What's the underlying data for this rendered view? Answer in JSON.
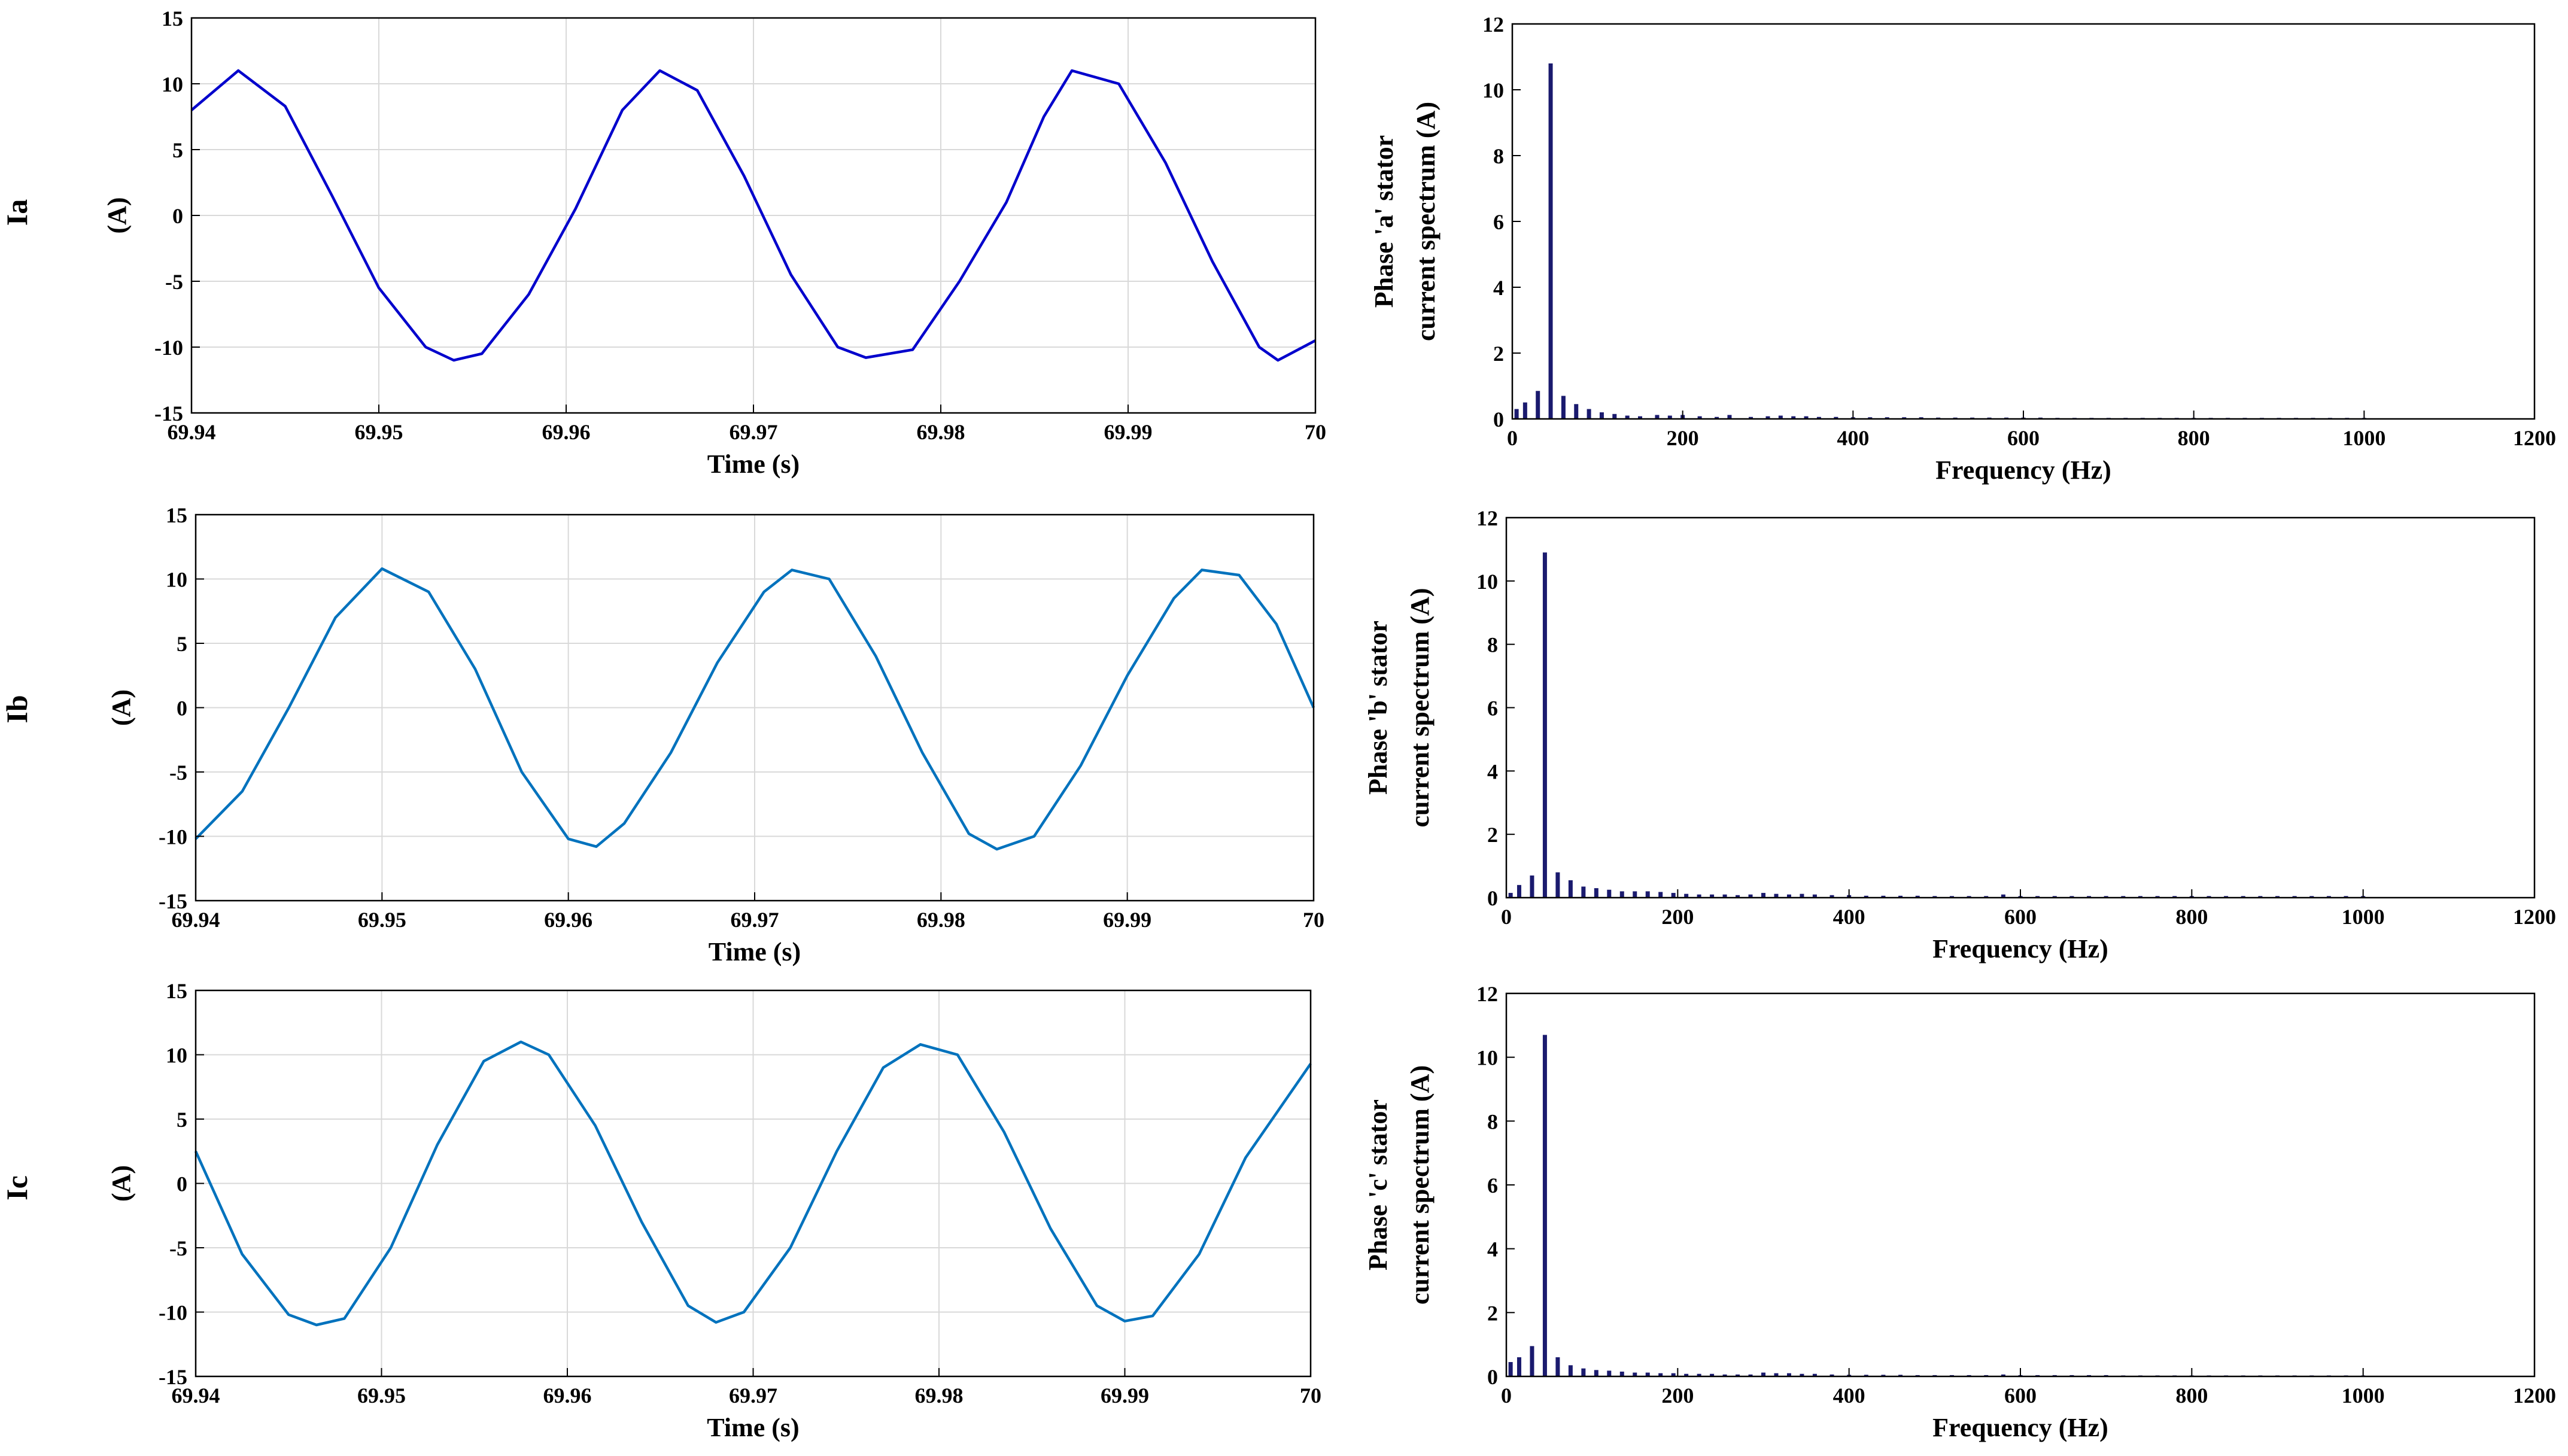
{
  "colors": {
    "time_series": [
      "#0000cc",
      "#0072bd",
      "#0072bd"
    ],
    "spectrum": "#1a1a6e",
    "grid": "#d9d9d9"
  },
  "row_labels": [
    "Ia",
    "Ib",
    "Ic"
  ],
  "chart_data": [
    {
      "type": "line",
      "row_label": "Ia",
      "ylabel": "(A)",
      "xlabel": "Time (s)",
      "xlim": [
        69.94,
        70
      ],
      "ylim": [
        -15,
        15
      ],
      "xticks": [
        69.94,
        69.95,
        69.96,
        69.97,
        69.98,
        69.99,
        70
      ],
      "xtick_labels": [
        "69.94",
        "69.95",
        "69.96",
        "69.97",
        "69.98",
        "69.99",
        "70"
      ],
      "yticks": [
        -15,
        -10,
        -5,
        0,
        5,
        10,
        15
      ],
      "ytick_labels": [
        "-15",
        "-10",
        "-5",
        "0",
        "5",
        "10",
        "15"
      ],
      "grid": true,
      "series": [
        {
          "x": [
            69.94,
            69.9425,
            69.945,
            69.9475,
            69.95,
            69.9525,
            69.954,
            69.9555,
            69.958,
            69.9605,
            69.963,
            69.965,
            69.967,
            69.9695,
            69.972,
            69.9745,
            69.976,
            69.9785,
            69.981,
            69.9835,
            69.9855,
            69.987,
            69.9895,
            69.992,
            69.9945,
            69.997,
            69.998,
            70.0
          ],
          "y": [
            8.0,
            11.0,
            8.3,
            1.5,
            -5.5,
            -10.0,
            -11.0,
            -10.5,
            -6.0,
            0.5,
            8.0,
            11.0,
            9.5,
            3.0,
            -4.5,
            -10.0,
            -10.8,
            -10.2,
            -5.0,
            1.0,
            7.5,
            11.0,
            10.0,
            4.0,
            -3.5,
            -10.0,
            -11.0,
            -9.5
          ]
        }
      ]
    },
    {
      "type": "bar",
      "ylabel": "Phase 'a' stator\ncurrent spectrum (A)",
      "xlabel": "Frequency (Hz)",
      "xlim": [
        0,
        1200
      ],
      "ylim": [
        0,
        12
      ],
      "xticks": [
        0,
        200,
        400,
        600,
        800,
        1000,
        1200
      ],
      "xtick_labels": [
        "0",
        "200",
        "400",
        "600",
        "800",
        "1000",
        "1200"
      ],
      "yticks": [
        0,
        2,
        4,
        6,
        8,
        10,
        12
      ],
      "ytick_labels": [
        "0",
        "2",
        "4",
        "6",
        "8",
        "10",
        "12"
      ],
      "x": [
        5,
        15,
        30,
        45,
        60,
        75,
        90,
        105,
        120,
        135,
        150,
        170,
        185,
        200,
        220,
        240,
        255,
        280,
        300,
        315,
        330,
        345,
        360,
        380,
        400,
        420,
        440,
        460,
        480,
        500,
        520,
        540,
        560,
        580,
        600,
        620,
        640,
        660,
        680,
        700,
        720,
        740,
        760,
        780,
        800,
        820,
        840,
        860,
        880,
        900,
        920,
        940,
        960,
        980,
        1000
      ],
      "values": [
        0.3,
        0.5,
        0.85,
        10.8,
        0.7,
        0.45,
        0.3,
        0.2,
        0.15,
        0.1,
        0.08,
        0.12,
        0.1,
        0.12,
        0.08,
        0.06,
        0.12,
        0.06,
        0.08,
        0.1,
        0.08,
        0.08,
        0.06,
        0.06,
        0.05,
        0.05,
        0.05,
        0.05,
        0.05,
        0.04,
        0.04,
        0.04,
        0.04,
        0.04,
        0.04,
        0.04,
        0.03,
        0.03,
        0.03,
        0.03,
        0.03,
        0.03,
        0.03,
        0.03,
        0.03,
        0.03,
        0.03,
        0.03,
        0.03,
        0.03,
        0.03,
        0.03,
        0.03,
        0.03,
        0.03
      ]
    },
    {
      "type": "line",
      "row_label": "Ib",
      "ylabel": "(A)",
      "xlabel": "Time (s)",
      "xlim": [
        69.94,
        70
      ],
      "ylim": [
        -15,
        15
      ],
      "xticks": [
        69.94,
        69.95,
        69.96,
        69.97,
        69.98,
        69.99,
        70
      ],
      "xtick_labels": [
        "69.94",
        "69.95",
        "69.96",
        "69.97",
        "69.98",
        "69.99",
        "70"
      ],
      "yticks": [
        -15,
        -10,
        -5,
        0,
        5,
        10,
        15
      ],
      "ytick_labels": [
        "-15",
        "-10",
        "-5",
        "0",
        "5",
        "10",
        "15"
      ],
      "grid": true,
      "series": [
        {
          "x": [
            69.94,
            69.9425,
            69.945,
            69.9475,
            69.95,
            69.9525,
            69.955,
            69.9575,
            69.96,
            69.9615,
            69.963,
            69.9655,
            69.968,
            69.9705,
            69.972,
            69.974,
            69.9765,
            69.979,
            69.9815,
            69.983,
            69.985,
            69.9875,
            69.99,
            69.9925,
            69.994,
            69.996,
            69.998,
            70.0
          ],
          "y": [
            -10.2,
            -6.5,
            0.0,
            7.0,
            10.8,
            9.0,
            3.0,
            -5.0,
            -10.2,
            -10.8,
            -9.0,
            -3.5,
            3.5,
            9.0,
            10.7,
            10.0,
            4.0,
            -3.5,
            -9.8,
            -11.0,
            -10.0,
            -4.5,
            2.5,
            8.5,
            10.7,
            10.3,
            6.5,
            0.0
          ]
        }
      ]
    },
    {
      "type": "bar",
      "ylabel": "Phase 'b' stator\ncurrent spectrum (A)",
      "xlabel": "Frequency (Hz)",
      "xlim": [
        0,
        1200
      ],
      "ylim": [
        0,
        12
      ],
      "xticks": [
        0,
        200,
        400,
        600,
        800,
        1000,
        1200
      ],
      "xtick_labels": [
        "0",
        "200",
        "400",
        "600",
        "800",
        "1000",
        "1200"
      ],
      "yticks": [
        0,
        2,
        4,
        6,
        8,
        10,
        12
      ],
      "ytick_labels": [
        "0",
        "2",
        "4",
        "6",
        "8",
        "10",
        "12"
      ],
      "x": [
        5,
        15,
        30,
        45,
        60,
        75,
        90,
        105,
        120,
        135,
        150,
        165,
        180,
        195,
        210,
        225,
        240,
        255,
        270,
        285,
        300,
        315,
        330,
        345,
        360,
        380,
        400,
        420,
        440,
        460,
        480,
        500,
        520,
        540,
        560,
        580,
        600,
        620,
        640,
        660,
        680,
        700,
        720,
        740,
        760,
        780,
        800,
        820,
        840,
        860,
        880,
        900,
        920,
        940,
        960,
        980,
        1000
      ],
      "values": [
        0.15,
        0.4,
        0.7,
        10.9,
        0.8,
        0.55,
        0.35,
        0.3,
        0.25,
        0.2,
        0.2,
        0.2,
        0.18,
        0.15,
        0.12,
        0.1,
        0.1,
        0.1,
        0.08,
        0.1,
        0.15,
        0.12,
        0.1,
        0.12,
        0.1,
        0.08,
        0.08,
        0.06,
        0.06,
        0.06,
        0.06,
        0.05,
        0.05,
        0.05,
        0.05,
        0.1,
        0.05,
        0.05,
        0.05,
        0.05,
        0.05,
        0.05,
        0.05,
        0.05,
        0.05,
        0.05,
        0.05,
        0.05,
        0.05,
        0.05,
        0.05,
        0.05,
        0.05,
        0.05,
        0.05,
        0.05,
        0.05
      ]
    },
    {
      "type": "line",
      "row_label": "Ic",
      "ylabel": "(A)",
      "xlabel": "Time (s)",
      "xlim": [
        69.94,
        70
      ],
      "ylim": [
        -15,
        15
      ],
      "xticks": [
        69.94,
        69.95,
        69.96,
        69.97,
        69.98,
        69.99,
        70
      ],
      "xtick_labels": [
        "69.94",
        "69.95",
        "69.96",
        "69.97",
        "69.98",
        "69.99",
        "70"
      ],
      "yticks": [
        -15,
        -10,
        -5,
        0,
        5,
        10,
        15
      ],
      "ytick_labels": [
        "-15",
        "-10",
        "-5",
        "0",
        "5",
        "10",
        "15"
      ],
      "grid": true,
      "series": [
        {
          "x": [
            69.94,
            69.9425,
            69.945,
            69.9465,
            69.948,
            69.9505,
            69.953,
            69.9555,
            69.9575,
            69.959,
            69.9615,
            69.964,
            69.9665,
            69.968,
            69.9695,
            69.972,
            69.9745,
            69.977,
            69.979,
            69.981,
            69.9835,
            69.986,
            69.9885,
            69.99,
            69.9915,
            69.994,
            69.9965,
            70.0
          ],
          "y": [
            2.5,
            -5.5,
            -10.2,
            -11.0,
            -10.5,
            -5.0,
            3.0,
            9.5,
            11.0,
            10.0,
            4.5,
            -3.0,
            -9.5,
            -10.8,
            -10.0,
            -5.0,
            2.5,
            9.0,
            10.8,
            10.0,
            4.0,
            -3.5,
            -9.5,
            -10.7,
            -10.3,
            -5.5,
            2.0,
            9.3
          ]
        }
      ]
    },
    {
      "type": "bar",
      "ylabel": "Phase 'c' stator\ncurrent spectrum (A)",
      "xlabel": "Frequency (Hz)",
      "xlim": [
        0,
        1200
      ],
      "ylim": [
        0,
        12
      ],
      "xticks": [
        0,
        200,
        400,
        600,
        800,
        1000,
        1200
      ],
      "xtick_labels": [
        "0",
        "200",
        "400",
        "600",
        "800",
        "1000",
        "1200"
      ],
      "yticks": [
        0,
        2,
        4,
        6,
        8,
        10,
        12
      ],
      "ytick_labels": [
        "0",
        "2",
        "4",
        "6",
        "8",
        "10",
        "12"
      ],
      "x": [
        5,
        15,
        30,
        45,
        60,
        75,
        90,
        105,
        120,
        135,
        150,
        165,
        180,
        195,
        210,
        225,
        240,
        255,
        270,
        285,
        300,
        315,
        330,
        345,
        360,
        380,
        400,
        420,
        440,
        460,
        480,
        500,
        520,
        540,
        560,
        580,
        600,
        620,
        640,
        660,
        680,
        700,
        720,
        740,
        760,
        780,
        800,
        820,
        840,
        860,
        880,
        900,
        920,
        940,
        960,
        980,
        1000
      ],
      "values": [
        0.45,
        0.6,
        0.95,
        10.7,
        0.6,
        0.35,
        0.25,
        0.2,
        0.18,
        0.15,
        0.12,
        0.12,
        0.1,
        0.1,
        0.08,
        0.08,
        0.08,
        0.06,
        0.06,
        0.06,
        0.12,
        0.1,
        0.1,
        0.08,
        0.08,
        0.06,
        0.05,
        0.05,
        0.05,
        0.05,
        0.04,
        0.04,
        0.04,
        0.04,
        0.04,
        0.06,
        0.04,
        0.04,
        0.04,
        0.04,
        0.04,
        0.04,
        0.03,
        0.03,
        0.03,
        0.03,
        0.03,
        0.03,
        0.03,
        0.03,
        0.03,
        0.03,
        0.03,
        0.03,
        0.03,
        0.03,
        0.03
      ]
    }
  ]
}
